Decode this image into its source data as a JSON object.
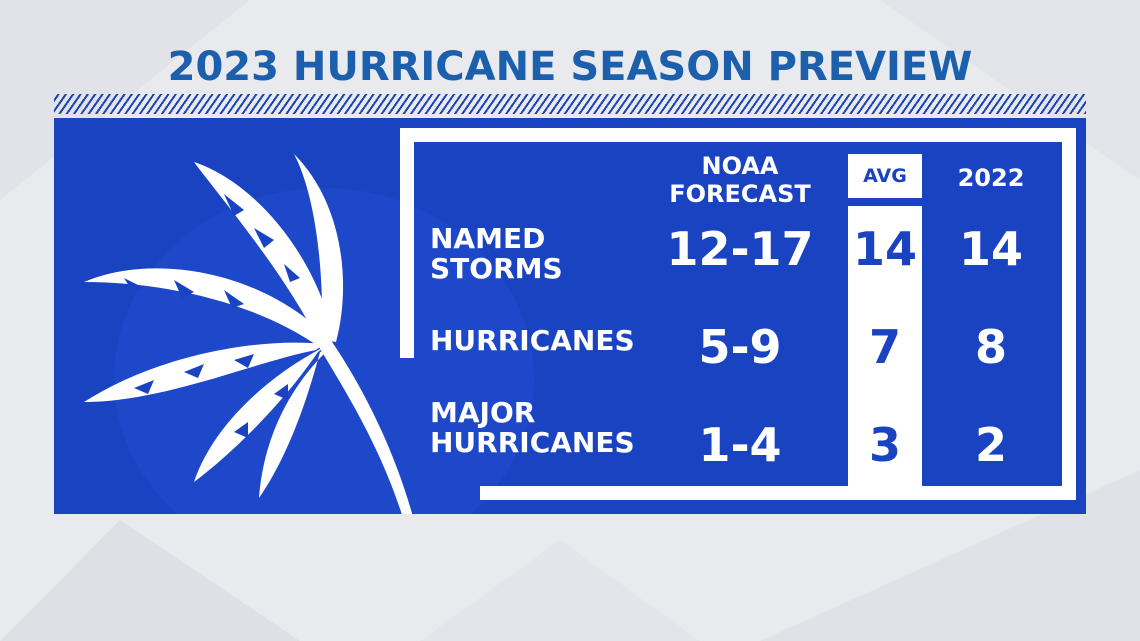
{
  "title": "2023 HURRICANE SEASON PREVIEW",
  "columns": {
    "noaa": "NOAA FORECAST",
    "noaa_line1": "NOAA",
    "noaa_line2": "FORECAST",
    "avg": "AVG",
    "year2022": "2022"
  },
  "rows": [
    {
      "label_line1": "NAMED",
      "label_line2": "STORMS",
      "noaa": "12-17",
      "avg": "14",
      "year2022": "14"
    },
    {
      "label_line1": "HURRICANES",
      "label_line2": "",
      "noaa": "5-9",
      "avg": "7",
      "year2022": "8"
    },
    {
      "label_line1": "MAJOR",
      "label_line2": "HURRICANES",
      "noaa": "1-4",
      "avg": "3",
      "year2022": "2"
    }
  ],
  "colors": {
    "panel": "#1a43c2",
    "title": "#1b5fad",
    "background": "#e9eaee",
    "text": "#ffffff"
  },
  "icons": {
    "decoration": "palm-tree-icon"
  }
}
